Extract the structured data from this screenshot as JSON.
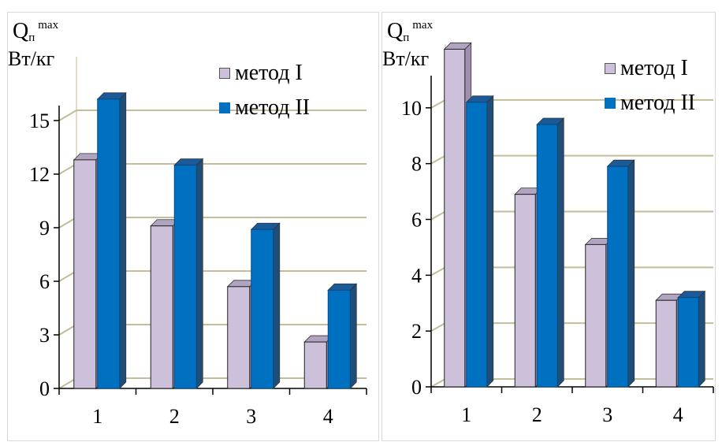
{
  "chart_data": [
    {
      "type": "bar",
      "ylabel_main": "Q",
      "ylabel_sub": "п",
      "ylabel_sup": "max",
      "ylabel_units": "Вт/кг",
      "categories": [
        "1",
        "2",
        "3",
        "4"
      ],
      "ylim": [
        0,
        18
      ],
      "yticks": [
        0,
        3,
        6,
        9,
        12,
        15
      ],
      "grid": true,
      "legend_position": "top-right",
      "series": [
        {
          "name": "метод I",
          "values": [
            12.8,
            9.1,
            5.7,
            2.6
          ],
          "color": "#ccc0da",
          "side": "#a090b0",
          "top": "#b0a4c0"
        },
        {
          "name": "метод II",
          "values": [
            16.2,
            12.5,
            8.9,
            5.5
          ],
          "color": "#0070c0",
          "side": "#1f4e79",
          "top": "#1a5a99"
        }
      ]
    },
    {
      "type": "bar",
      "ylabel_main": "Q",
      "ylabel_sub": "п",
      "ylabel_sup": "max",
      "ylabel_units": "Вт/кг",
      "categories": [
        "1",
        "2",
        "3",
        "4"
      ],
      "ylim": [
        0,
        12
      ],
      "yticks": [
        0,
        2,
        4,
        6,
        8,
        10
      ],
      "grid": true,
      "legend_position": "top-right",
      "series": [
        {
          "name": "метод I",
          "values": [
            12.1,
            6.9,
            5.1,
            3.1
          ],
          "color": "#ccc0da",
          "side": "#a090b0",
          "top": "#b0a4c0"
        },
        {
          "name": "метод II",
          "values": [
            10.2,
            9.4,
            7.9,
            3.2
          ],
          "color": "#0070c0",
          "side": "#1f4e79",
          "top": "#1a5a99"
        }
      ]
    }
  ]
}
